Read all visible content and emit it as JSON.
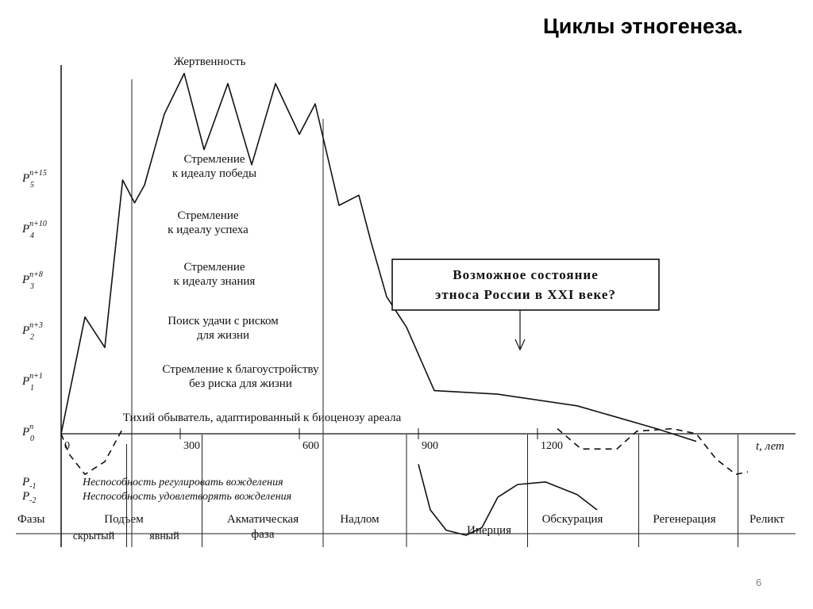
{
  "slide": {
    "title": "Циклы этногенеза.",
    "page_number": "6"
  },
  "chart_data": {
    "type": "line",
    "title": "Циклы этногенеза.",
    "xlabel": "t, лет",
    "ylabel": "",
    "xlim": [
      -30,
      1630
    ],
    "x_ticks": [
      {
        "value": 0,
        "label": "0"
      },
      {
        "value": 300,
        "label": "300"
      },
      {
        "value": 600,
        "label": "600"
      },
      {
        "value": 900,
        "label": "900"
      },
      {
        "value": 1200,
        "label": "1200"
      }
    ],
    "y_levels": [
      {
        "base": "P",
        "sub": "0",
        "sup": "n",
        "value": 0
      },
      {
        "base": "P",
        "sub": "1",
        "sup": "n+1",
        "value": 1
      },
      {
        "base": "P",
        "sub": "2",
        "sup": "n+3",
        "value": 2
      },
      {
        "base": "P",
        "sub": "3",
        "sup": "n+8",
        "value": 3
      },
      {
        "base": "P",
        "sub": "4",
        "sup": "n+10",
        "value": 4
      },
      {
        "base": "P",
        "sub": "5",
        "sup": "n+15",
        "value": 5
      }
    ],
    "negative_levels": [
      {
        "base": "P",
        "sub": "-1",
        "text": "Неспособность регулировать вожделения"
      },
      {
        "base": "P",
        "sub": "-2",
        "text": "Неспособность удовлетворять вожделения"
      }
    ],
    "level_descriptions": [
      "Жертвенность",
      "Стремление\nк идеалу победы",
      "Стремление\nк идеалу успеха",
      "Стремление\nк идеалу знания",
      "Поиск удачи с риском\nдля жизни",
      "Стремление к благоустройству\nбез риска для жизни",
      "Тихий обыватель, адаптированный к биоценозу ареала"
    ],
    "series": [
      {
        "style": "solid",
        "points": [
          [
            0,
            0
          ],
          [
            60,
            2.3
          ],
          [
            110,
            1.7
          ],
          [
            155,
            5.0
          ],
          [
            185,
            4.55
          ],
          [
            210,
            4.9
          ],
          [
            260,
            6.3
          ],
          [
            310,
            7.1
          ],
          [
            360,
            5.6
          ],
          [
            420,
            6.9
          ],
          [
            480,
            5.3
          ],
          [
            540,
            6.9
          ],
          [
            600,
            5.9
          ],
          [
            640,
            6.5
          ],
          [
            700,
            4.5
          ],
          [
            750,
            4.7
          ],
          [
            780,
            3.8
          ],
          [
            820,
            2.7
          ],
          [
            870,
            2.1
          ],
          [
            940,
            0.85
          ],
          [
            1100,
            0.78
          ],
          [
            1300,
            0.55
          ],
          [
            1500,
            0.1
          ],
          [
            1600,
            -0.15
          ]
        ]
      },
      {
        "style": "dashed",
        "points": [
          [
            0,
            0
          ],
          [
            20,
            -0.4
          ],
          [
            60,
            -0.8
          ],
          [
            110,
            -0.55
          ],
          [
            155,
            0.1
          ]
        ]
      },
      {
        "style": "solid",
        "points": [
          [
            900,
            -0.6
          ],
          [
            930,
            -1.5
          ],
          [
            970,
            -1.9
          ],
          [
            1020,
            -2.0
          ],
          [
            1060,
            -1.85
          ],
          [
            1100,
            -1.25
          ],
          [
            1150,
            -1.0
          ],
          [
            1220,
            -0.95
          ],
          [
            1300,
            -1.2
          ],
          [
            1350,
            -1.5
          ]
        ]
      },
      {
        "style": "dashed",
        "points": [
          [
            1250,
            0.1
          ],
          [
            1310,
            -0.3
          ],
          [
            1400,
            -0.3
          ],
          [
            1450,
            0.05
          ],
          [
            1540,
            0.1
          ],
          [
            1600,
            0.0
          ],
          [
            1650,
            -0.5
          ],
          [
            1700,
            -0.8
          ],
          [
            1730,
            -0.75
          ]
        ]
      }
    ],
    "phases_label": "Фазы",
    "phases": [
      {
        "name": "Подъем",
        "sub": [
          "скрытый",
          "явный"
        ]
      },
      {
        "name": "Акматическая\nфаза"
      },
      {
        "name": "Надлом"
      },
      {
        "name": "Инерция"
      },
      {
        "name": "Обскурация"
      },
      {
        "name": "Регенерация"
      },
      {
        "name": "Реликт"
      }
    ],
    "annotation": {
      "text": "Возможное состояние\nэтноса России в XXI веке?"
    }
  }
}
